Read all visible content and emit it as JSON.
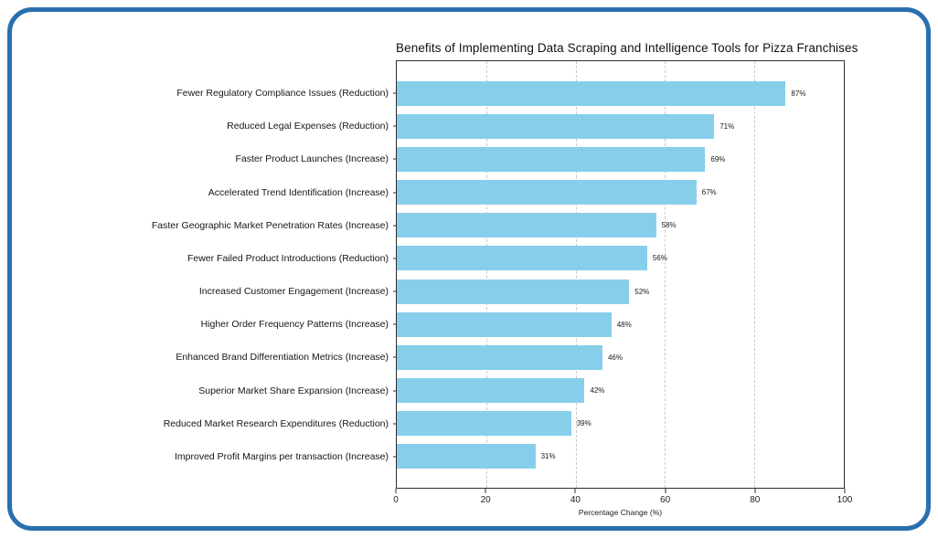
{
  "frame": {
    "border_color": "#2a6fad",
    "background": "#ffffff"
  },
  "chart_data": {
    "type": "bar",
    "orientation": "horizontal",
    "title": "Benefits of Implementing Data Scraping and Intelligence Tools for Pizza Franchises",
    "xlabel": "Percentage Change (%)",
    "xlim": [
      0,
      100
    ],
    "x_ticks": [
      0,
      20,
      40,
      60,
      80,
      100
    ],
    "grid": "vertical-dashed",
    "legend": "none",
    "bar_color": "#87CEEB",
    "categories": [
      "Fewer Regulatory Compliance Issues (Reduction)",
      "Reduced Legal Expenses (Reduction)",
      "Faster Product Launches (Increase)",
      "Accelerated Trend Identification (Increase)",
      "Faster Geographic Market Penetration Rates (Increase)",
      "Fewer Failed Product Introductions (Reduction)",
      "Increased Customer Engagement (Increase)",
      "Higher Order Frequency Patterns (Increase)",
      "Enhanced Brand Differentiation Metrics (Increase)",
      "Superior Market Share Expansion (Increase)",
      "Reduced Market Research Expenditures (Reduction)",
      "Improved Profit Margins per transaction (Increase)"
    ],
    "values": [
      87,
      71,
      69,
      67,
      58,
      56,
      52,
      48,
      46,
      42,
      39,
      31
    ],
    "value_labels": [
      "87%",
      "71%",
      "69%",
      "67%",
      "58%",
      "56%",
      "52%",
      "48%",
      "46%",
      "42%",
      "39%",
      "31%"
    ]
  }
}
